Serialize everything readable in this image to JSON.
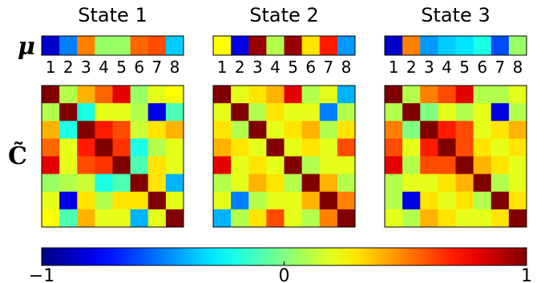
{
  "chart_data": {
    "type": "heatmap",
    "colormap": "jet",
    "value_range": [
      -1,
      1
    ],
    "row_labels": {
      "mu": "μ",
      "cov": "C̃"
    },
    "index_labels": [
      "1",
      "2",
      "3",
      "4",
      "5",
      "6",
      "7",
      "8"
    ],
    "colorbar": {
      "ticks": [
        "−1",
        "0",
        "1"
      ],
      "tick_values": [
        -1,
        0,
        1
      ]
    },
    "panels": [
      {
        "title": "State 1",
        "mu": [
          -0.85,
          -0.5,
          0.5,
          0.05,
          0.05,
          0.55,
          0.6,
          -0.35
        ],
        "cov": [
          [
            1.0,
            0.1,
            0.4,
            0.55,
            0.8,
            0.05,
            0.2,
            0.25
          ],
          [
            0.1,
            1.0,
            -0.2,
            0.2,
            0.2,
            0.1,
            -0.8,
            -0.1
          ],
          [
            0.4,
            -0.2,
            1.0,
            0.7,
            0.6,
            0.15,
            0.3,
            0.4
          ],
          [
            0.55,
            0.2,
            0.7,
            1.0,
            0.65,
            -0.2,
            0.1,
            0.2
          ],
          [
            0.8,
            0.2,
            0.6,
            0.65,
            1.0,
            -0.1,
            0.3,
            0.2
          ],
          [
            0.05,
            0.1,
            0.15,
            -0.2,
            -0.1,
            1.0,
            0.3,
            -0.4
          ],
          [
            0.2,
            -0.8,
            0.3,
            0.1,
            0.3,
            0.3,
            1.0,
            0.2
          ],
          [
            0.25,
            -0.1,
            0.4,
            0.2,
            0.2,
            -0.4,
            0.2,
            1.0
          ]
        ]
      },
      {
        "title": "State 2",
        "mu": [
          0.25,
          -0.8,
          0.95,
          0.1,
          0.95,
          0.3,
          0.7,
          -0.45
        ],
        "cov": [
          [
            1.0,
            0.2,
            0.3,
            0.4,
            0.8,
            0.1,
            0.2,
            -0.4
          ],
          [
            0.2,
            1.0,
            0.1,
            0.3,
            0.2,
            0.2,
            -0.5,
            0.1
          ],
          [
            0.3,
            0.1,
            1.0,
            0.2,
            0.3,
            0.4,
            0.1,
            0.3
          ],
          [
            0.4,
            0.3,
            0.2,
            1.0,
            0.2,
            0.3,
            0.2,
            0.6
          ],
          [
            0.8,
            0.2,
            0.3,
            0.2,
            1.0,
            0.1,
            0.2,
            0.2
          ],
          [
            0.1,
            0.2,
            0.4,
            0.3,
            0.1,
            1.0,
            0.4,
            0.1
          ],
          [
            0.2,
            -0.5,
            0.1,
            0.2,
            0.2,
            0.4,
            1.0,
            0.5
          ],
          [
            -0.4,
            0.1,
            0.3,
            0.6,
            0.2,
            0.1,
            0.5,
            1.0
          ]
        ]
      },
      {
        "title": "State 3",
        "mu": [
          -0.85,
          0.5,
          -0.45,
          -0.35,
          -0.3,
          -0.2,
          -0.6,
          0.05
        ],
        "cov": [
          [
            1.0,
            0.1,
            0.5,
            0.6,
            0.8,
            0.1,
            0.1,
            0.2
          ],
          [
            0.1,
            1.0,
            0.0,
            0.2,
            0.1,
            0.2,
            -0.8,
            0.1
          ],
          [
            0.5,
            0.0,
            1.0,
            0.7,
            0.6,
            0.2,
            0.3,
            0.4
          ],
          [
            0.6,
            0.2,
            0.7,
            1.0,
            0.6,
            0.3,
            0.2,
            0.3
          ],
          [
            0.8,
            0.1,
            0.6,
            0.6,
            1.0,
            0.4,
            0.3,
            0.2
          ],
          [
            0.1,
            0.2,
            0.2,
            0.3,
            0.4,
            1.0,
            0.1,
            0.2
          ],
          [
            0.1,
            -0.8,
            0.3,
            0.2,
            0.3,
            0.1,
            1.0,
            0.3
          ],
          [
            0.2,
            0.1,
            0.4,
            0.3,
            0.2,
            0.2,
            0.3,
            1.0
          ]
        ]
      }
    ]
  }
}
